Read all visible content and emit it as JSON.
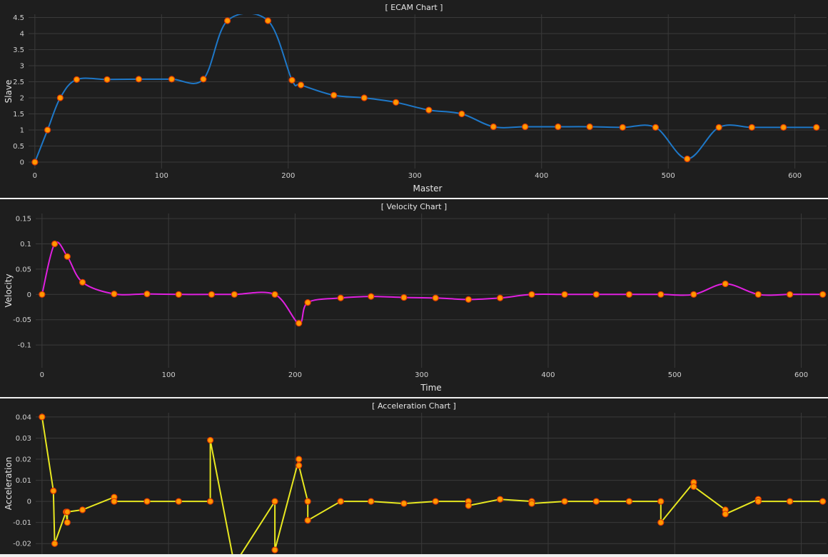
{
  "chart_data": [
    {
      "type": "line",
      "title": "[ ECAM Chart ]",
      "xlabel": "Master",
      "ylabel": "Slave",
      "xlim": [
        -5,
        625
      ],
      "ylim": [
        -0.2,
        4.6
      ],
      "xticks": [
        0,
        100,
        200,
        300,
        400,
        500,
        600
      ],
      "yticks": [
        0,
        0.5,
        1,
        1.5,
        2,
        2.5,
        3,
        3.5,
        4,
        4.5
      ],
      "ytick_labels": [
        "0",
        "0.5",
        "1",
        "1.5",
        "2",
        "2.5",
        "3",
        "3.5",
        "4",
        "4.5"
      ],
      "grid": true,
      "line_color": "#1e78c8",
      "marker_color": "#ff9900",
      "series": [
        {
          "x": [
            0,
            10,
            20,
            33,
            57,
            82,
            108,
            133,
            152,
            184,
            203,
            210,
            236,
            260,
            285,
            311,
            337,
            362,
            387,
            413,
            438,
            464,
            490,
            515,
            540,
            566,
            591,
            617
          ],
          "y": [
            0,
            1.0,
            2.0,
            2.57,
            2.57,
            2.58,
            2.58,
            2.58,
            4.4,
            4.4,
            2.55,
            2.4,
            2.08,
            2.0,
            1.86,
            1.62,
            1.5,
            1.1,
            1.1,
            1.1,
            1.1,
            1.08,
            1.08,
            0.1,
            1.08,
            1.08,
            1.08,
            1.08
          ]
        }
      ]
    },
    {
      "type": "line",
      "title": "[ Velocity Chart ]",
      "xlabel": "Time",
      "ylabel": "Velocity",
      "xlim": [
        -5,
        620
      ],
      "ylim": [
        -0.145,
        0.16
      ],
      "xticks": [
        0,
        100,
        200,
        300,
        400,
        500,
        600
      ],
      "yticks": [
        -0.1,
        -0.05,
        0,
        0.05,
        0.1,
        0.15
      ],
      "ytick_labels": [
        "-0.1",
        "-0.05",
        "0",
        "0.05",
        "0.1",
        "0.15"
      ],
      "grid": true,
      "line_color": "#e020e0",
      "marker_color": "#ff9900",
      "series": [
        {
          "x": [
            0,
            10,
            20,
            32,
            57,
            83,
            108,
            134,
            152,
            184,
            203,
            210,
            236,
            260,
            286,
            311,
            337,
            362,
            387,
            413,
            438,
            464,
            489,
            515,
            540,
            566,
            591,
            617
          ],
          "y": [
            0,
            0.1,
            0.075,
            0.024,
            0.001,
            0.001,
            0.0,
            0.0,
            0.0,
            0.0,
            -0.057,
            -0.016,
            -0.007,
            -0.004,
            -0.006,
            -0.007,
            -0.01,
            -0.007,
            0.0,
            0.0,
            0.0,
            0.0,
            0.0,
            0.0,
            0.021,
            0.0,
            0.0,
            0.0
          ]
        }
      ]
    },
    {
      "type": "line",
      "title": "[ Acceleration Chart ]",
      "xlabel": "",
      "ylabel": "Acceleration",
      "xlim": [
        -5,
        620
      ],
      "ylim": [
        -0.025,
        0.042
      ],
      "xticks": [
        0,
        100,
        200,
        300,
        400,
        500,
        600
      ],
      "yticks": [
        -0.02,
        -0.01,
        0,
        0.01,
        0.02,
        0.03,
        0.04
      ],
      "ytick_labels": [
        "-0.02",
        "-0.01",
        "0",
        "0.01",
        "0.02",
        "0.03",
        "0.04"
      ],
      "grid": true,
      "line_color": "#e8e820",
      "marker_color": "#ff9900",
      "series": [
        {
          "x": [
            0,
            9,
            10,
            19,
            20,
            20,
            32,
            57,
            57,
            83,
            108,
            133,
            133,
            152,
            184,
            184,
            203,
            203,
            210,
            210,
            236,
            236,
            260,
            286,
            311,
            337,
            337,
            362,
            387,
            387,
            413,
            438,
            464,
            489,
            489,
            515,
            515,
            540,
            540,
            566,
            566,
            591,
            617
          ],
          "y": [
            0.04,
            0.005,
            -0.02,
            -0.005,
            -0.01,
            -0.005,
            -0.004,
            0.002,
            0.0,
            0.0,
            0.0,
            0.0,
            0.029,
            -0.03,
            0.0,
            -0.023,
            0.02,
            0.017,
            0.0,
            -0.009,
            0.0,
            0.0,
            0.0,
            -0.001,
            0.0,
            0.0,
            -0.002,
            0.001,
            0.0,
            -0.001,
            0.0,
            0.0,
            0.0,
            0.0,
            -0.01,
            0.009,
            0.007,
            -0.004,
            -0.006,
            0.001,
            0.0,
            0.0,
            0.0
          ]
        }
      ]
    }
  ]
}
